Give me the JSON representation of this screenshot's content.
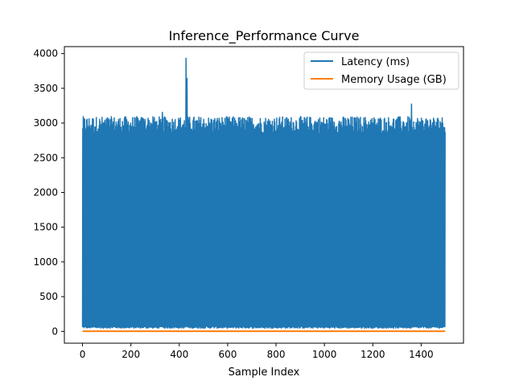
{
  "chart_data": {
    "type": "line",
    "title": "Inference_Performance Curve",
    "xlabel": "Sample Index",
    "ylabel": "",
    "xlim": [
      -75,
      1575
    ],
    "ylim": [
      -170,
      4100
    ],
    "x_ticks": [
      0,
      200,
      400,
      600,
      800,
      1000,
      1200,
      1400
    ],
    "y_ticks": [
      0,
      500,
      1000,
      1500,
      2000,
      2500,
      3000,
      3500,
      4000
    ],
    "legend_position": "upper right",
    "series": [
      {
        "name": "Latency (ms)",
        "color": "#1f77b4",
        "description": "oscillates every sample between a low band near 50 ms and a high band near 2900-3100 ms",
        "low_band": [
          40,
          70
        ],
        "high_band": [
          2850,
          3100
        ],
        "spikes": [
          {
            "x": 330,
            "y": 3160
          },
          {
            "x": 428,
            "y": 3940
          },
          {
            "x": 432,
            "y": 3650
          },
          {
            "x": 1360,
            "y": 3280
          }
        ],
        "x_range": [
          0,
          1499
        ]
      },
      {
        "name": "Memory Usage (GB)",
        "color": "#ff7f0e",
        "values_constant": 2,
        "x_range": [
          0,
          1499
        ]
      }
    ]
  }
}
